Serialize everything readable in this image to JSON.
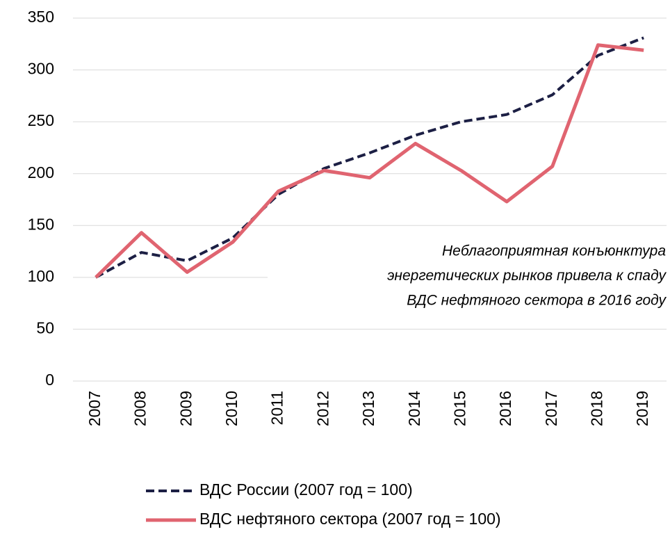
{
  "chart_data": {
    "type": "line",
    "categories": [
      "2007",
      "2008",
      "2009",
      "2010",
      "2011",
      "2012",
      "2013",
      "2014",
      "2015",
      "2016",
      "2017",
      "2018",
      "2019"
    ],
    "series": [
      {
        "name": "ВДС России (2007 год = 100)",
        "color": "#1c1f44",
        "dashed": true,
        "values": [
          100,
          124,
          116,
          138,
          180,
          205,
          220,
          237,
          250,
          257,
          276,
          314,
          331
        ]
      },
      {
        "name": "ВДС нефтяного сектора (2007 год = 100)",
        "color": "#e06470",
        "dashed": false,
        "values": [
          100,
          143,
          105,
          134,
          183,
          203,
          196,
          229,
          203,
          173,
          207,
          324,
          319
        ]
      }
    ],
    "ylim": [
      0,
      350
    ],
    "yticks": [
      0,
      50,
      100,
      150,
      200,
      250,
      300,
      350
    ],
    "grid": true,
    "annotation": [
      "Неблагоприятная конъюнктура",
      "энергетических рынков привела к спаду",
      "ВДС нефтяного сектора в 2016 году"
    ],
    "legend": "bottom"
  }
}
